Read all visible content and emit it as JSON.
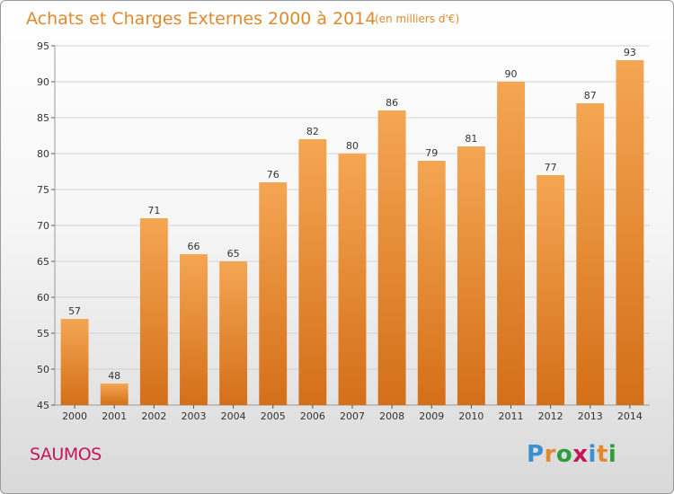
{
  "chart_data": {
    "type": "bar",
    "title": "Achats et Charges Externes 2000 à 2014",
    "unit_note": "(en milliers d'€)",
    "categories": [
      "2000",
      "2001",
      "2002",
      "2003",
      "2004",
      "2005",
      "2006",
      "2007",
      "2008",
      "2009",
      "2010",
      "2011",
      "2012",
      "2013",
      "2014"
    ],
    "values": [
      57,
      48,
      71,
      66,
      65,
      76,
      82,
      80,
      86,
      79,
      81,
      90,
      77,
      87,
      93
    ],
    "ylim": [
      45,
      95
    ],
    "yticks": [
      45,
      50,
      55,
      60,
      65,
      70,
      75,
      80,
      85,
      90,
      95
    ],
    "grid": true,
    "bar_color_top": "#f5a653",
    "bar_color_bottom": "#d46f18",
    "accent_color": "#e0892e"
  },
  "footer": {
    "commune": "SAUMOS",
    "commune_color": "#c2185b",
    "logo": "Proxiti",
    "logo_colors": [
      "#3a8fd1",
      "#e0892e",
      "#2e9e3c",
      "#c2185b",
      "#3a8fd1",
      "#e0892e",
      "#2e9e3c"
    ]
  }
}
